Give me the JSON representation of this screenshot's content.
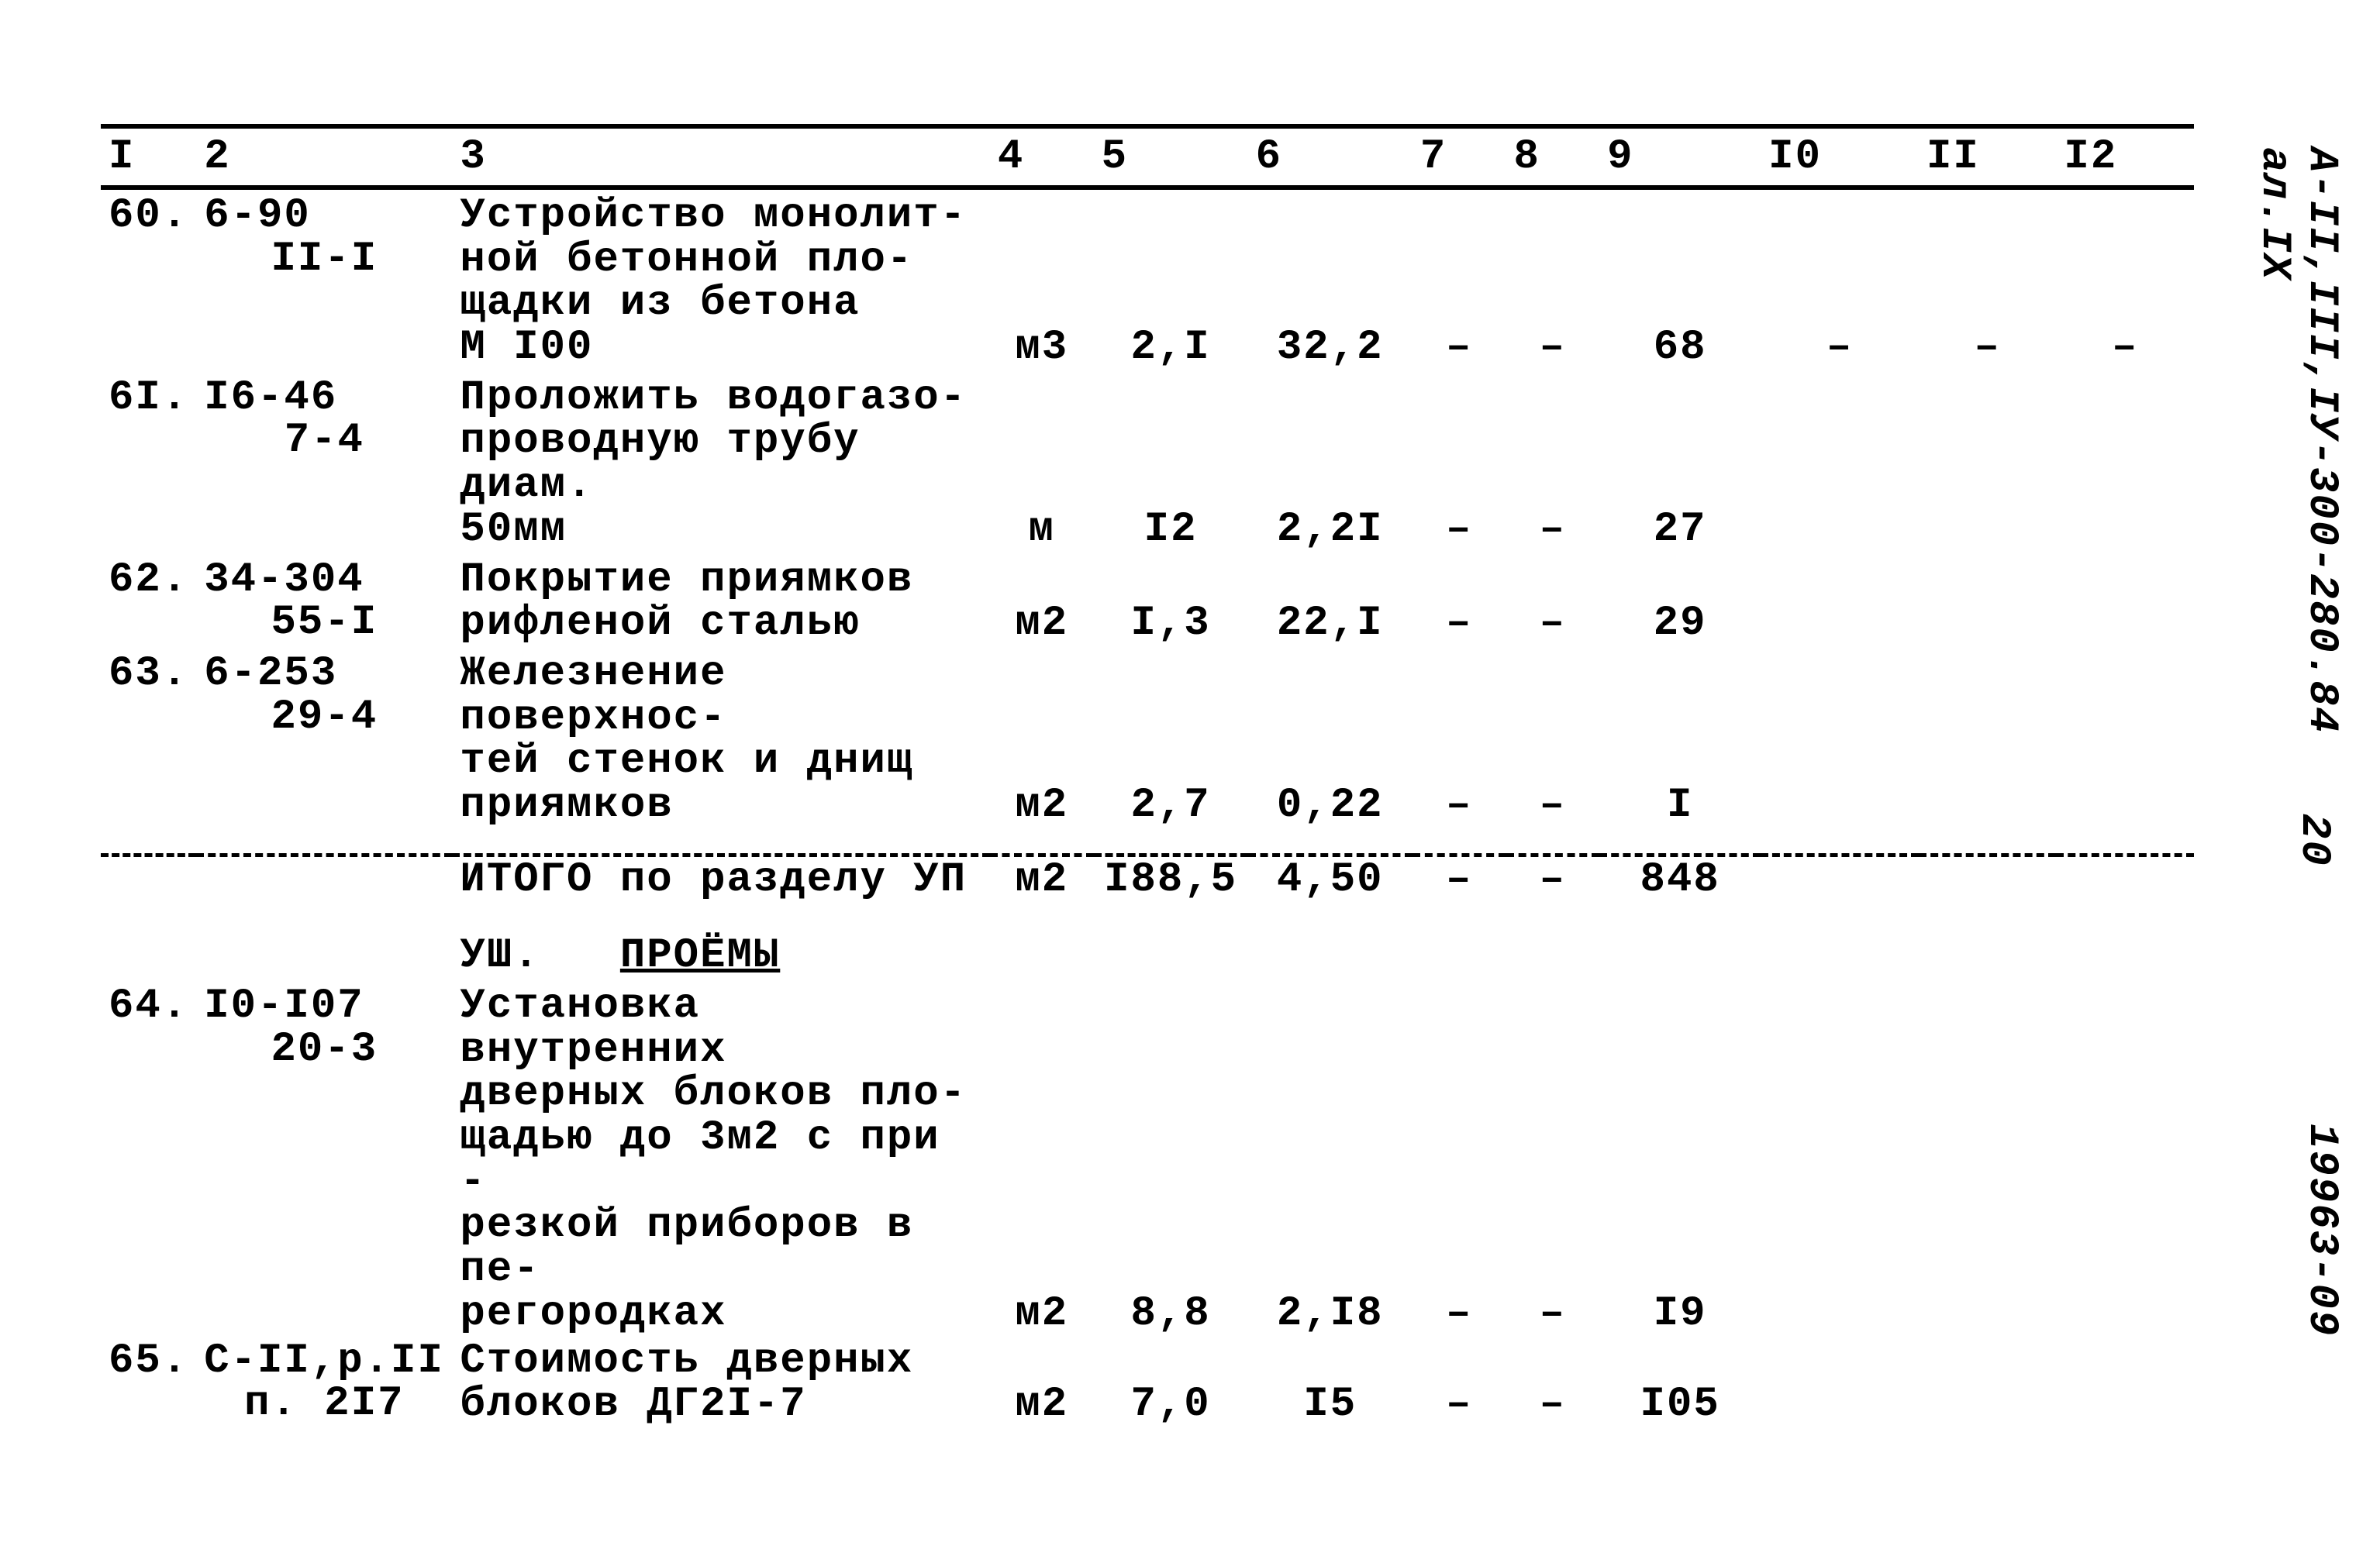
{
  "columns": [
    "I",
    "2",
    "3",
    "4",
    "5",
    "6",
    "7",
    "8",
    "9",
    "I0",
    "II",
    "I2"
  ],
  "side": {
    "ref_main": "А-II,III,IУ-300-280.84",
    "ref_al": "ал.IХ",
    "page": "20",
    "code": "19963-09"
  },
  "rows": [
    {
      "n": "60.",
      "ref_top": "6-90",
      "ref_sub": "II-I",
      "desc": "Устройство монолит-\nной бетонной пло-\nщадки из бетона\nМ I00",
      "unit": "м3",
      "c5": "2,I",
      "c6": "32,2",
      "c7": "–",
      "c8": "–",
      "c9": "68",
      "c10": "–",
      "c11": "–",
      "c12": "–"
    },
    {
      "n": "6I.",
      "ref_top": "I6-46",
      "ref_sub": "7-4",
      "desc": "Проложить водогазо-\nпроводную трубу диам.\n50мм",
      "unit": "м",
      "c5": "I2",
      "c6": "2,2I",
      "c7": "–",
      "c8": "–",
      "c9": "27",
      "c10": "",
      "c11": "",
      "c12": ""
    },
    {
      "n": "62.",
      "ref_top": "34-304",
      "ref_sub": "55-I",
      "desc": "Покрытие приямков\nрифленой сталью",
      "unit": "м2",
      "c5": "I,3",
      "c6": "22,I",
      "c7": "–",
      "c8": "–",
      "c9": "29",
      "c10": "",
      "c11": "",
      "c12": ""
    },
    {
      "n": "63.",
      "ref_top": "6-253",
      "ref_sub": "29-4",
      "desc": "Железнение поверхнос-\nтей стенок и днищ\nприямков",
      "unit": "м2",
      "c5": "2,7",
      "c6": "0,22",
      "c7": "–",
      "c8": "–",
      "c9": "I",
      "c10": "",
      "c11": "",
      "c12": ""
    }
  ],
  "subtotal": {
    "label": "ИТОГО по разделу УП",
    "unit": "м2",
    "c5": "I88,5",
    "c6": "4,50",
    "c7": "–",
    "c8": "–",
    "c9": "848",
    "c10": "",
    "c11": "",
    "c12": ""
  },
  "section8": {
    "prefix": "УШ.",
    "title": "ПРОЁМЫ"
  },
  "rows2": [
    {
      "n": "64.",
      "ref_top": "I0-I07",
      "ref_sub": "20-3",
      "desc": "Установка внутренних\nдверных блоков пло-\nщадью до 3м2 с при -\nрезкой приборов в пе-\nрегородках",
      "unit": "м2",
      "c5": "8,8",
      "c6": "2,I8",
      "c7": "–",
      "c8": "–",
      "c9": "I9",
      "c10": "",
      "c11": "",
      "c12": ""
    },
    {
      "n": "65.",
      "ref_top": "С-II,р.II",
      "ref_sub": "п. 2I7",
      "desc": "Стоимость дверных\nблоков ДГ2I-7",
      "unit": "м2",
      "c5": "7,0",
      "c6": "I5",
      "c7": "–",
      "c8": "–",
      "c9": "I05",
      "c10": "",
      "c11": "",
      "c12": ""
    }
  ]
}
